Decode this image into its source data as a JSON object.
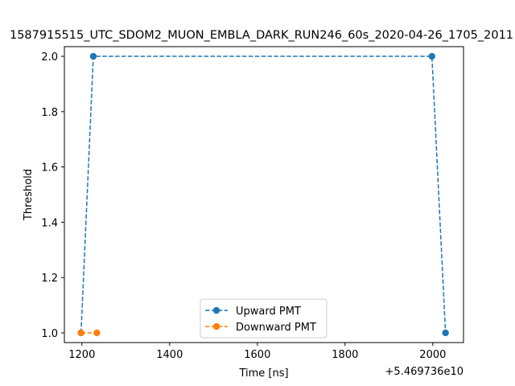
{
  "chart_data": {
    "type": "line",
    "title": "1587915515_UTC_SDOM2_MUON_EMBLA_DARK_RUN246_60s_2020-04-26_1705_2011",
    "xlabel": "Time [ns]",
    "ylabel": "Threshold",
    "x_offset_label": "+5.469736e10",
    "x_offset": 54697360000,
    "xlim": [
      1160,
      2070
    ],
    "ylim": [
      0.965,
      2.035
    ],
    "x_ticks": [
      1200,
      1400,
      1600,
      1800,
      2000
    ],
    "x_tick_labels": [
      "1200",
      "1400",
      "1600",
      "1800",
      "2000"
    ],
    "y_ticks": [
      1.0,
      1.2,
      1.4,
      1.6,
      1.8,
      2.0
    ],
    "y_tick_labels": [
      "1.0",
      "1.2",
      "1.4",
      "1.6",
      "1.8",
      "2.0"
    ],
    "legend_position": "lower-center",
    "series": [
      {
        "name": "Upward PMT",
        "color": "#1f77b4",
        "linestyle": "dashed",
        "marker": "circle",
        "points": [
          [
            1198,
            1.0
          ],
          [
            1226,
            2.0
          ],
          [
            1998,
            2.0
          ],
          [
            2029,
            1.0
          ]
        ]
      },
      {
        "name": "Downward PMT",
        "color": "#ff7f0e",
        "linestyle": "dashed",
        "marker": "circle",
        "points": [
          [
            1198,
            1.0
          ],
          [
            1234,
            1.0
          ]
        ]
      }
    ]
  }
}
